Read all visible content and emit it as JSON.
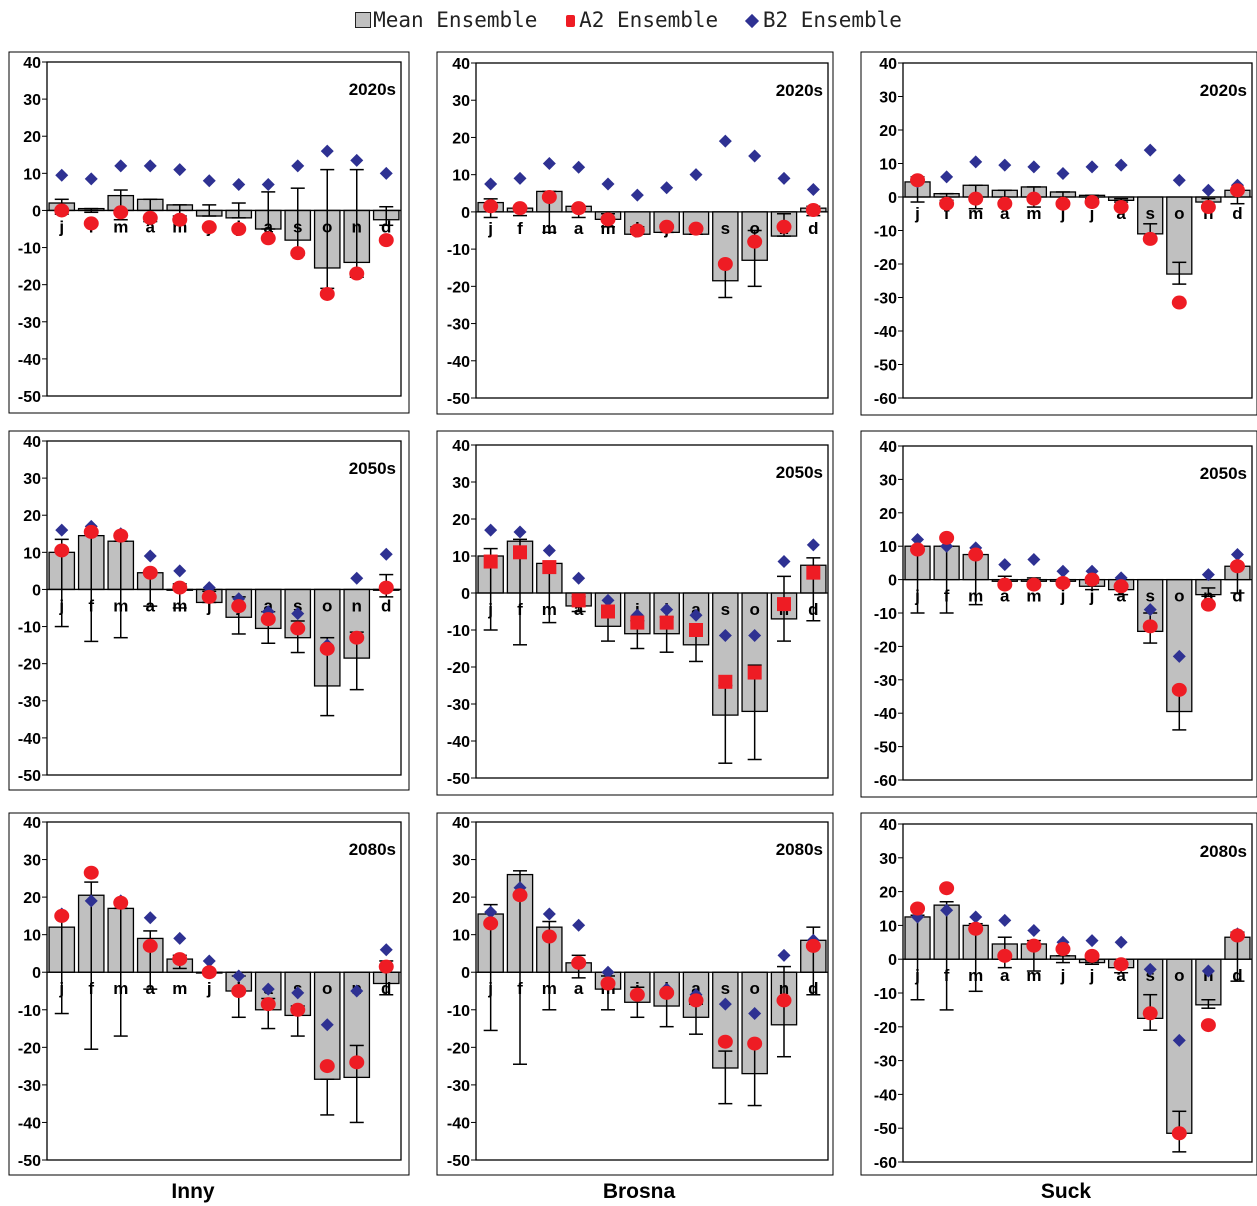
{
  "legend": {
    "mean": "Mean Ensemble",
    "a2": "A2 Ensemble",
    "b2": "B2 Ensemble"
  },
  "colors": {
    "bar": "#c0c0c0",
    "a2": "#ee1c24",
    "b2": "#2e3192"
  },
  "rivers": [
    "Inny",
    "Brosna",
    "Suck"
  ],
  "chart_data": [
    {
      "type": "bar",
      "river": "Inny",
      "period": "2020s",
      "categories": [
        "j",
        "f",
        "m",
        "a",
        "m",
        "j",
        "j",
        "a",
        "s",
        "o",
        "n",
        "d"
      ],
      "ylim": [
        -50,
        40
      ],
      "yticks": [
        40,
        30,
        20,
        10,
        0,
        -10,
        -20,
        -30,
        -40,
        -50
      ],
      "a2_marker": "circle",
      "series": [
        {
          "name": "Mean Ensemble",
          "values": [
            2,
            0.5,
            4,
            3,
            1.5,
            -1.5,
            -2,
            -5,
            -8,
            -15.5,
            -14,
            -2.5
          ],
          "err_low": [
            1,
            0.5,
            2.5,
            3,
            1.5,
            1.5,
            2,
            5,
            12,
            21,
            18,
            4
          ],
          "err_high": [
            3,
            0.5,
            5.5,
            3,
            1.5,
            1.5,
            2,
            5,
            6,
            11,
            11,
            1
          ]
        },
        {
          "name": "A2 Ensemble",
          "values": [
            0,
            -3.5,
            -0.5,
            -2,
            -2.5,
            -4.5,
            -5,
            -7.5,
            -11.5,
            -22.5,
            -17,
            -8
          ]
        },
        {
          "name": "B2 Ensemble",
          "values": [
            9.5,
            8.5,
            12,
            12,
            11,
            8,
            7,
            7,
            12,
            16,
            13.5,
            10
          ]
        }
      ]
    },
    {
      "type": "bar",
      "river": "Brosna",
      "period": "2020s",
      "categories": [
        "j",
        "f",
        "m",
        "a",
        "m",
        "j",
        "j",
        "a",
        "s",
        "o",
        "n",
        "d"
      ],
      "ylim": [
        -50,
        40
      ],
      "yticks": [
        40,
        30,
        20,
        10,
        0,
        -10,
        -20,
        -30,
        -40,
        -50
      ],
      "a2_marker": "circle",
      "series": [
        {
          "name": "Mean Ensemble",
          "values": [
            2.5,
            1,
            5.5,
            1.5,
            -2,
            -6,
            -5.5,
            -6,
            -18.5,
            -13,
            -6.5,
            1
          ],
          "err_low": [
            1.5,
            1,
            5.5,
            1.5,
            4,
            6,
            5.5,
            6,
            23,
            20,
            6.5,
            1
          ],
          "err_high": [
            3.5,
            1,
            5.5,
            1.5,
            -0.5,
            -4,
            -3.5,
            -4,
            -14,
            -5,
            -0.5,
            1.5
          ]
        },
        {
          "name": "A2 Ensemble",
          "values": [
            1.5,
            1,
            4,
            1,
            -2,
            -5,
            -4,
            -4.5,
            -14,
            -8,
            -4,
            0.5
          ]
        },
        {
          "name": "B2 Ensemble",
          "values": [
            7.5,
            9,
            13,
            12,
            7.5,
            4.5,
            6.5,
            10,
            19,
            15,
            9,
            6
          ]
        }
      ]
    },
    {
      "type": "bar",
      "river": "Suck",
      "period": "2020s",
      "categories": [
        "j",
        "f",
        "m",
        "a",
        "m",
        "j",
        "j",
        "a",
        "s",
        "o",
        "n",
        "d"
      ],
      "ylim": [
        -60,
        40
      ],
      "yticks": [
        40,
        30,
        20,
        10,
        0,
        -10,
        -20,
        -30,
        -40,
        -50,
        -60
      ],
      "a2_marker": "circle",
      "series": [
        {
          "name": "Mean Ensemble",
          "values": [
            4.5,
            1,
            3.5,
            2,
            3,
            1.5,
            0.5,
            -1,
            -11,
            -23,
            -1.5,
            2
          ],
          "err_low": [
            1.5,
            1,
            3.5,
            2,
            3,
            1.5,
            0.5,
            1.5,
            13,
            26,
            2.5,
            2
          ],
          "err_high": [
            6,
            1,
            3.5,
            2,
            3,
            1.5,
            0.5,
            -0.5,
            -8,
            -19.5,
            -0.5,
            2
          ]
        },
        {
          "name": "A2 Ensemble",
          "values": [
            5,
            -2,
            -0.5,
            -2,
            -0.5,
            -2,
            -1.5,
            -3,
            -12.5,
            -31.5,
            -3,
            2
          ]
        },
        {
          "name": "B2 Ensemble",
          "values": [
            4.5,
            6,
            10.5,
            9.5,
            9,
            7,
            9,
            9.5,
            14,
            5,
            2,
            3.5
          ]
        }
      ]
    },
    {
      "type": "bar",
      "river": "Inny",
      "period": "2050s",
      "categories": [
        "j",
        "f",
        "m",
        "a",
        "m",
        "j",
        "j",
        "a",
        "s",
        "o",
        "n",
        "d"
      ],
      "ylim": [
        -50,
        40
      ],
      "yticks": [
        40,
        30,
        20,
        10,
        0,
        -10,
        -20,
        -30,
        -40,
        -50
      ],
      "a2_marker": "circle",
      "series": [
        {
          "name": "Mean Ensemble",
          "values": [
            10,
            14.5,
            13,
            4.5,
            0,
            -3.5,
            -7.5,
            -10.5,
            -13,
            -26,
            -18.5,
            0
          ],
          "err_low": [
            10,
            14,
            13,
            4.5,
            5,
            3.5,
            12,
            14.5,
            17,
            34,
            27,
            2
          ],
          "err_high": [
            13.5,
            15,
            13,
            4.5,
            1.5,
            -0.5,
            -2,
            -6,
            -8.5,
            -13,
            -11.5,
            4
          ]
        },
        {
          "name": "A2 Ensemble",
          "values": [
            10.5,
            15.5,
            14.5,
            4.5,
            0.5,
            -2,
            -4.5,
            -8,
            -10.5,
            -16,
            -13,
            0.5
          ]
        },
        {
          "name": "B2 Ensemble",
          "values": [
            16,
            17,
            15,
            9,
            5,
            0.5,
            -2.5,
            -6,
            -6.5,
            -15,
            3,
            9.5
          ]
        }
      ]
    },
    {
      "type": "bar",
      "river": "Brosna",
      "period": "2050s",
      "categories": [
        "j",
        "f",
        "m",
        "a",
        "m",
        "j",
        "j",
        "a",
        "s",
        "o",
        "n",
        "d"
      ],
      "ylim": [
        -50,
        40
      ],
      "yticks": [
        40,
        30,
        20,
        10,
        0,
        -10,
        -20,
        -30,
        -40,
        -50
      ],
      "a2_marker": "square",
      "series": [
        {
          "name": "Mean Ensemble",
          "values": [
            10,
            14,
            8,
            -3.5,
            -9,
            -11,
            -11,
            -14,
            -33,
            -32,
            -7,
            7.5
          ],
          "err_low": [
            10,
            14,
            8,
            5,
            13,
            15,
            16,
            18.5,
            46,
            45,
            13,
            7.5
          ],
          "err_high": [
            12,
            14.5,
            8,
            -1,
            -6,
            -7.5,
            -6.5,
            -10,
            -25,
            -19.5,
            4.5,
            9.5
          ]
        },
        {
          "name": "A2 Ensemble",
          "values": [
            8.5,
            11,
            7,
            -2,
            -5,
            -8,
            -8,
            -10,
            -24,
            -21.5,
            -3,
            5.5
          ]
        },
        {
          "name": "B2 Ensemble",
          "values": [
            17,
            16.5,
            11.5,
            4,
            -2,
            -6,
            -4.5,
            -6,
            -11.5,
            -11.5,
            8.5,
            13
          ]
        }
      ]
    },
    {
      "type": "bar",
      "river": "Suck",
      "period": "2050s",
      "categories": [
        "j",
        "f",
        "m",
        "a",
        "m",
        "j",
        "j",
        "a",
        "s",
        "o",
        "n",
        "d"
      ],
      "ylim": [
        -60,
        40
      ],
      "yticks": [
        40,
        30,
        20,
        10,
        0,
        -10,
        -20,
        -30,
        -40,
        -50,
        -60
      ],
      "a2_marker": "circle",
      "series": [
        {
          "name": "Mean Ensemble",
          "values": [
            10,
            10,
            7.5,
            -0.5,
            -0.5,
            -0.5,
            -2,
            -3,
            -15.5,
            -39.5,
            -4.5,
            4
          ],
          "err_low": [
            10,
            10,
            7.5,
            1.5,
            1.5,
            1.5,
            3,
            4.5,
            19,
            45,
            5,
            4
          ],
          "err_high": [
            10,
            10,
            7.5,
            1,
            0.5,
            0,
            -1,
            -1.5,
            -10,
            -32.5,
            -2.5,
            4
          ]
        },
        {
          "name": "A2 Ensemble",
          "values": [
            9,
            12.5,
            7.5,
            -1.5,
            -1.5,
            -1,
            0,
            -2,
            -14,
            -33,
            -7.5,
            4
          ]
        },
        {
          "name": "B2 Ensemble",
          "values": [
            12,
            10,
            9.5,
            4.5,
            6,
            2.5,
            2.5,
            0.5,
            -9,
            -23,
            1.5,
            7.5
          ]
        }
      ]
    },
    {
      "type": "bar",
      "river": "Inny",
      "period": "2080s",
      "categories": [
        "j",
        "f",
        "m",
        "a",
        "m",
        "j",
        "j",
        "a",
        "s",
        "o",
        "n",
        "d"
      ],
      "ylim": [
        -50,
        40
      ],
      "yticks": [
        40,
        30,
        20,
        10,
        0,
        -10,
        -20,
        -30,
        -40,
        -50
      ],
      "a2_marker": "circle",
      "series": [
        {
          "name": "Mean Ensemble",
          "values": [
            12,
            20.5,
            17,
            9,
            3.5,
            0,
            -5,
            -10,
            -11.5,
            -28.5,
            -28,
            -3
          ],
          "err_low": [
            11,
            20.5,
            17,
            4.5,
            -1,
            0,
            12,
            15,
            17,
            38,
            40,
            6
          ],
          "err_high": [
            15,
            24,
            17,
            11,
            4.5,
            0,
            -1,
            -7,
            -9,
            -28.5,
            -19.5,
            3
          ]
        },
        {
          "name": "A2 Ensemble",
          "values": [
            15,
            26.5,
            18.5,
            7,
            3.5,
            0,
            -5,
            -8.5,
            -10,
            -25,
            -24,
            1.5
          ]
        },
        {
          "name": "B2 Ensemble",
          "values": [
            15.5,
            19,
            19,
            14.5,
            9,
            3,
            -1,
            -4.5,
            -5.5,
            -14,
            -5,
            6
          ]
        }
      ]
    },
    {
      "type": "bar",
      "river": "Brosna",
      "period": "2080s",
      "categories": [
        "j",
        "f",
        "m",
        "a",
        "m",
        "j",
        "j",
        "a",
        "s",
        "o",
        "n",
        "d"
      ],
      "ylim": [
        -50,
        40
      ],
      "yticks": [
        40,
        30,
        20,
        10,
        0,
        -10,
        -20,
        -30,
        -40,
        -50
      ],
      "a2_marker": "circle",
      "series": [
        {
          "name": "Mean Ensemble",
          "values": [
            15.5,
            26,
            12,
            2.5,
            -4.5,
            -8,
            -9,
            -12,
            -25.5,
            -27,
            -14,
            8.5
          ],
          "err_low": [
            15.5,
            24.5,
            10,
            1.5,
            10,
            12,
            14.5,
            16.5,
            35,
            35.5,
            22.5,
            6
          ],
          "err_high": [
            18,
            27,
            13.5,
            4.5,
            -1,
            -4,
            -5,
            -8.5,
            -21,
            -19,
            1.5,
            12
          ]
        },
        {
          "name": "A2 Ensemble",
          "values": [
            13,
            20.5,
            9.5,
            2.5,
            -3,
            -6,
            -5.5,
            -7.5,
            -18.5,
            -19,
            -7.5,
            7
          ]
        },
        {
          "name": "B2 Ensemble",
          "values": [
            16,
            22.5,
            15.5,
            12.5,
            0,
            -6,
            -4.5,
            -6,
            -8.5,
            -11,
            4.5,
            8.5
          ]
        }
      ]
    },
    {
      "type": "bar",
      "river": "Suck",
      "period": "2080s",
      "categories": [
        "j",
        "f",
        "m",
        "a",
        "m",
        "j",
        "j",
        "a",
        "s",
        "o",
        "n",
        "d"
      ],
      "ylim": [
        -60,
        40
      ],
      "yticks": [
        40,
        30,
        20,
        10,
        0,
        -10,
        -20,
        -30,
        -40,
        -50,
        -60
      ],
      "a2_marker": "circle",
      "series": [
        {
          "name": "Mean Ensemble",
          "values": [
            12.5,
            16,
            10,
            4.5,
            4.5,
            1,
            -1,
            -2.5,
            -17.5,
            -51.5,
            -13.5,
            6.5
          ],
          "err_low": [
            12,
            15,
            9.5,
            2.5,
            3.5,
            1,
            1.5,
            4,
            21,
            57,
            14.5,
            6.5
          ],
          "err_high": [
            13,
            17,
            10.5,
            6.5,
            5.5,
            1,
            -0.5,
            -1,
            -10.5,
            -45,
            -12,
            8
          ]
        },
        {
          "name": "A2 Ensemble",
          "values": [
            15,
            21,
            9,
            1,
            4,
            3,
            1,
            -1.5,
            -16,
            -51.5,
            -19.5,
            7
          ]
        },
        {
          "name": "B2 Ensemble",
          "values": [
            12.5,
            14.5,
            12.5,
            11.5,
            8.5,
            5,
            5.5,
            5,
            -3,
            -24,
            -3.5,
            7.5
          ]
        }
      ]
    }
  ]
}
